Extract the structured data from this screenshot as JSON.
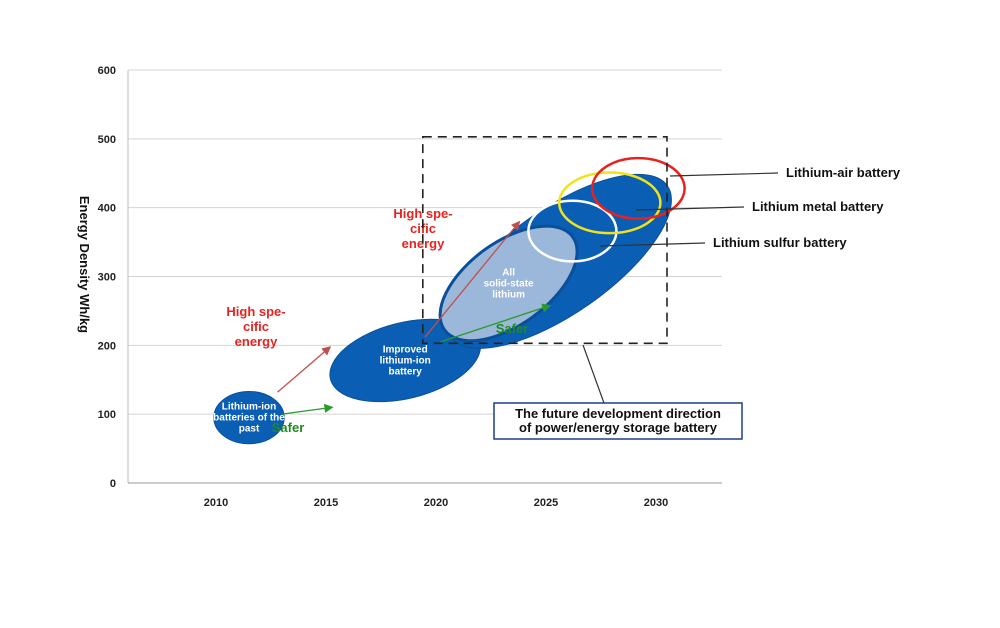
{
  "chart_data": {
    "type": "bubble-roadmap",
    "title": "",
    "xlabel": "",
    "ylabel": "Energy Density Wh/kg",
    "x_ticks": [
      2010,
      2015,
      2020,
      2025,
      2030
    ],
    "y_ticks": [
      0,
      100,
      200,
      300,
      400,
      500,
      600
    ],
    "xlim": [
      2006,
      2033
    ],
    "ylim": [
      0,
      600
    ],
    "grid": "horizontal",
    "colors": {
      "ellipse_fill": "#0a5fb4",
      "light_ellipse_fill": "#9bb7da",
      "red_arrow": "#c0504d",
      "green_arrow": "#2a9a2a",
      "air_ring": "#e8231f",
      "metal_ring": "#f2e21b",
      "sulfur_ring": "#ffffff"
    },
    "ellipses": [
      {
        "name": "past",
        "label_lines": [
          "Lithium-ion",
          "batteries of the",
          "past"
        ],
        "cx": 2011.5,
        "cy": 95,
        "rx": 1.6,
        "ry": 38,
        "rotate": 0
      },
      {
        "name": "improved",
        "label_lines": [
          "Improved",
          "lithium-ion",
          "battery"
        ],
        "cx": 2018.6,
        "cy": 178,
        "rx": 3.5,
        "ry": 55,
        "rotate": -14
      },
      {
        "name": "future",
        "label_lines": [],
        "cx": 2025.6,
        "cy": 322,
        "rx": 6.0,
        "ry": 76,
        "rotate": -35
      },
      {
        "name": "solid-state",
        "label_lines": [
          "All",
          "solid-state",
          "lithium"
        ],
        "cx": 2023.3,
        "cy": 290,
        "rx": 3.6,
        "ry": 60,
        "rotate": -36
      }
    ],
    "rings": [
      {
        "name": "Lithium sulfur battery",
        "cx": 2026.2,
        "cy": 366,
        "rx": 2.0,
        "ry": 44,
        "color_key": "sulfur_ring"
      },
      {
        "name": "Lithium metal battery",
        "cx": 2027.9,
        "cy": 407,
        "rx": 2.3,
        "ry": 44,
        "color_key": "metal_ring"
      },
      {
        "name": "Lithium-air battery",
        "cx": 2029.2,
        "cy": 428,
        "rx": 2.1,
        "ry": 44,
        "color_key": "air_ring"
      }
    ],
    "red_arrows": [
      {
        "from": [
          2012.8,
          132
        ],
        "to": [
          2015.2,
          198
        ]
      },
      {
        "from": [
          2019.5,
          212
        ],
        "to": [
          2023.8,
          380
        ]
      }
    ],
    "green_arrows": [
      {
        "from": [
          2013.0,
          100
        ],
        "to": [
          2015.3,
          110
        ]
      },
      {
        "from": [
          2020.2,
          205
        ],
        "to": [
          2025.2,
          258
        ]
      }
    ],
    "annotations": {
      "high_energy_1": [
        "High spe-",
        "cific",
        "energy"
      ],
      "high_energy_2": [
        "High spe-",
        "cific",
        "energy"
      ],
      "safer_1": "Safer",
      "safer_2": "Safer",
      "future_box": [
        "The future development direction",
        "of power/energy storage battery"
      ]
    },
    "dashed_box": {
      "x0": 2019.4,
      "x1": 2030.5,
      "y0": 203,
      "y1": 503
    }
  }
}
